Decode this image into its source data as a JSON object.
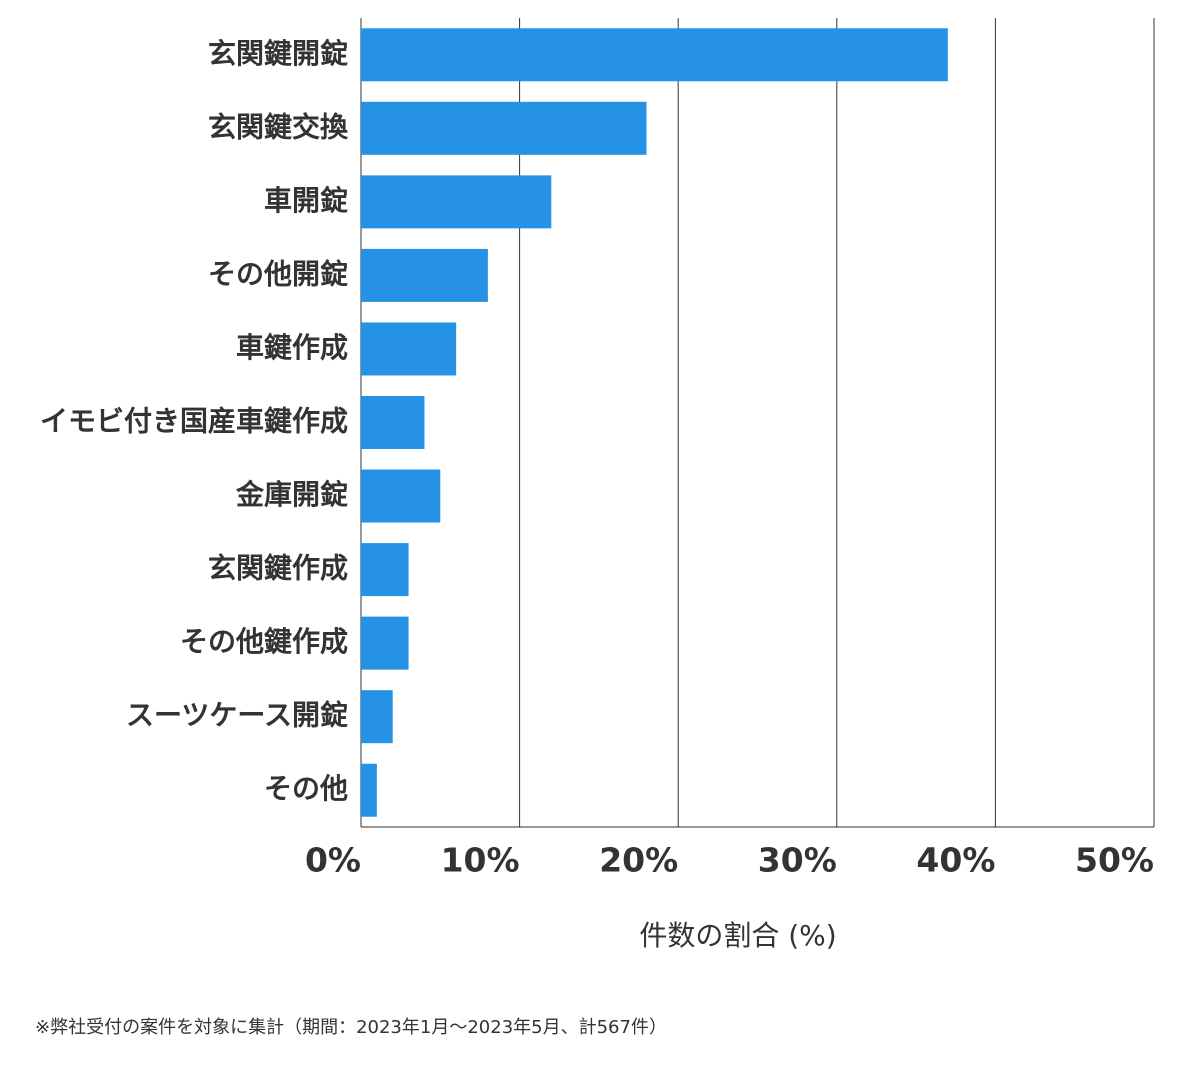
{
  "chart_data": {
    "type": "bar",
    "orientation": "horizontal",
    "categories": [
      "玄関鍵開錠",
      "玄関鍵交換",
      "車開錠",
      "その他開錠",
      "車鍵作成",
      "イモビ付き国産車鍵作成",
      "金庫開錠",
      "玄関鍵作成",
      "その他鍵作成",
      "スーツケース開錠",
      "その他"
    ],
    "values": [
      37,
      18,
      12,
      8,
      6,
      4,
      5,
      3,
      3,
      2,
      1
    ],
    "color": "#2592e6",
    "xlim": [
      0,
      50
    ],
    "xticks": [
      {
        "value": 0,
        "label": "0%"
      },
      {
        "value": 10,
        "label": "10%"
      },
      {
        "value": 20,
        "label": "20%"
      },
      {
        "value": 30,
        "label": "30%"
      },
      {
        "value": 40,
        "label": "40%"
      },
      {
        "value": 50,
        "label": "50%"
      }
    ],
    "grid": true,
    "x_label": "件数の割合 (%)",
    "footnote": "※弊社受付の案件を対象に集計（期間：2023年1月～2023年5月、計567件）"
  }
}
